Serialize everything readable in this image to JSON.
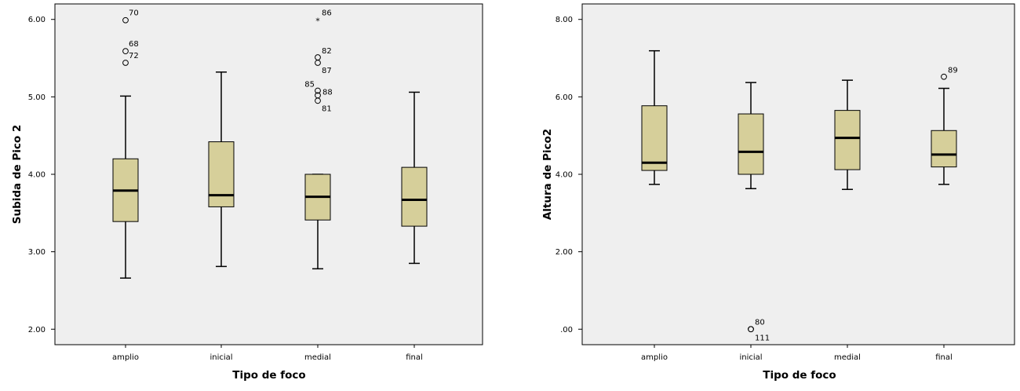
{
  "chart_data": [
    {
      "type": "box",
      "xlabel": "Tipo de foco",
      "ylabel": "Subida de Pico 2",
      "ylim": [
        1.8,
        6.2
      ],
      "yticks": [
        2.0,
        3.0,
        4.0,
        5.0,
        6.0
      ],
      "ytick_labels": [
        "2.00",
        "3.00",
        "4.00",
        "5.00",
        "6.00"
      ],
      "categories": [
        "amplio",
        "inicial",
        "medial",
        "final"
      ],
      "boxes": [
        {
          "category": "amplio",
          "whisker_low": 2.66,
          "q1": 3.39,
          "median": 3.79,
          "q3": 4.2,
          "whisker_high": 5.01,
          "outliers": [
            {
              "value": 5.99,
              "label": "70",
              "symbol": "circle"
            },
            {
              "value": 5.59,
              "label": "68",
              "symbol": "circle"
            },
            {
              "value": 5.44,
              "label": "72",
              "symbol": "circle"
            }
          ]
        },
        {
          "category": "inicial",
          "whisker_low": 2.81,
          "q1": 3.58,
          "median": 3.73,
          "q3": 4.42,
          "whisker_high": 5.32,
          "outliers": []
        },
        {
          "category": "medial",
          "whisker_low": 2.78,
          "q1": 3.41,
          "median": 3.71,
          "q3": 4.0,
          "whisker_high": 4.0,
          "outliers": [
            {
              "value": 6.0,
              "label": "86",
              "symbol": "star"
            },
            {
              "value": 5.51,
              "label": "82",
              "symbol": "circle"
            },
            {
              "value": 5.44,
              "label": "87",
              "symbol": "circle"
            },
            {
              "value": 5.08,
              "label": "85",
              "symbol": "circle"
            },
            {
              "value": 5.02,
              "label": "88",
              "symbol": "circle"
            },
            {
              "value": 4.95,
              "label": "81",
              "symbol": "circle"
            }
          ]
        },
        {
          "category": "final",
          "whisker_low": 2.85,
          "q1": 3.33,
          "median": 3.67,
          "q3": 4.09,
          "whisker_high": 5.06,
          "outliers": []
        }
      ]
    },
    {
      "type": "box",
      "xlabel": "Tipo de foco",
      "ylabel": "Altura de Pico2",
      "ylim": [
        -0.4,
        8.4
      ],
      "yticks": [
        0.0,
        2.0,
        4.0,
        6.0,
        8.0
      ],
      "ytick_labels": [
        ".00",
        "2.00",
        "4.00",
        "6.00",
        "8.00"
      ],
      "categories": [
        "amplio",
        "inicial",
        "medial",
        "final"
      ],
      "boxes": [
        {
          "category": "amplio",
          "whisker_low": 3.74,
          "q1": 4.1,
          "median": 4.3,
          "q3": 5.77,
          "whisker_high": 7.19,
          "outliers": []
        },
        {
          "category": "inicial",
          "whisker_low": 3.63,
          "q1": 4.0,
          "median": 4.58,
          "q3": 5.56,
          "whisker_high": 6.37,
          "outliers": [
            {
              "value": 0.0,
              "label": "80",
              "symbol": "circle"
            },
            {
              "value": 0.0,
              "label": "111",
              "symbol": "circle"
            }
          ]
        },
        {
          "category": "medial",
          "whisker_low": 3.61,
          "q1": 4.12,
          "median": 4.94,
          "q3": 5.65,
          "whisker_high": 6.43,
          "outliers": []
        },
        {
          "category": "final",
          "whisker_low": 3.74,
          "q1": 4.19,
          "median": 4.51,
          "q3": 5.13,
          "whisker_high": 6.22,
          "outliers": [
            {
              "value": 6.52,
              "label": "89",
              "symbol": "circle"
            }
          ]
        }
      ]
    }
  ]
}
